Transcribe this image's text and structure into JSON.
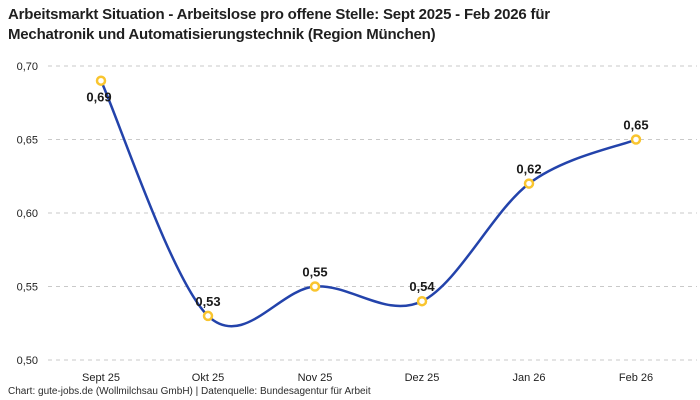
{
  "title": {
    "line1": "Arbeitsmarkt Situation - Arbeitslose pro offene Stelle: Sept 2025 - Feb 2026 für",
    "line2": "Mechatronik und Automatisierungstechnik (Region München)"
  },
  "footer": {
    "source_text": "Chart: gute-jobs.de (Wollmilchsau GmbH) | Datenquelle: Bundesagentur für Arbeit"
  },
  "chart_data": {
    "type": "line",
    "categories": [
      "Sept 25",
      "Okt 25",
      "Nov 25",
      "Dez 25",
      "Jan 26",
      "Feb 26"
    ],
    "values": [
      0.69,
      0.53,
      0.55,
      0.54,
      0.62,
      0.65
    ],
    "value_labels": [
      "0,69",
      "0,53",
      "0,55",
      "0,54",
      "0,62",
      "0,65"
    ],
    "label_below_indices": [
      0
    ],
    "title": "Arbeitsmarkt Situation - Arbeitslose pro offene Stelle: Sept 2025 - Feb 2026 für Mechatronik und Automatisierungstechnik (Region München)",
    "xlabel": "",
    "ylabel": "",
    "ylim": [
      0.5,
      0.7
    ],
    "yticks": [
      0.7,
      0.65,
      0.6,
      0.55,
      0.5
    ],
    "ytick_labels": [
      "0,70",
      "0,65",
      "0,60",
      "0,55",
      "0,50"
    ],
    "grid": "horizontal-dashed",
    "legend": "none",
    "line_smoothing": "spline",
    "colors": {
      "line": "#2343ab",
      "marker_ring": "#f9c52f",
      "marker_fill": "#ffffff",
      "gridline": "#c9c9c9",
      "label": "#1a1a1a"
    }
  }
}
